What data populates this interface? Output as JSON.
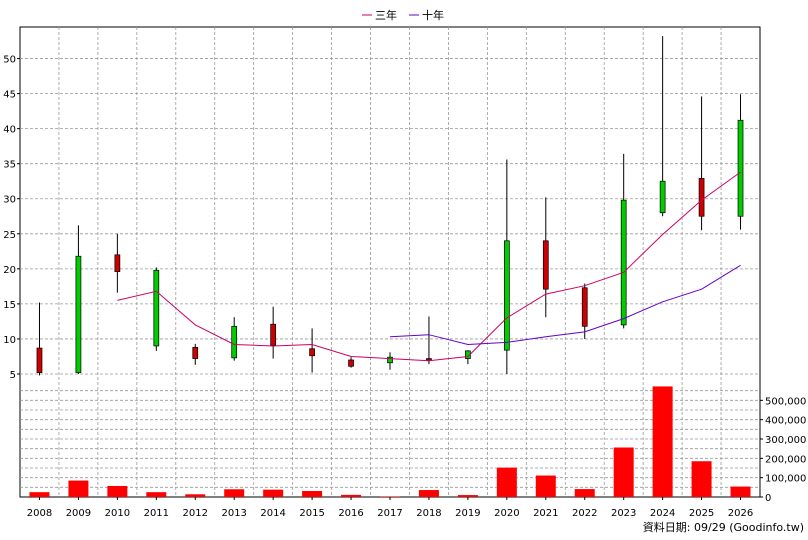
{
  "chart_data": {
    "type": "candlestick",
    "legend": [
      {
        "name": "三年",
        "color": "#cc0066"
      },
      {
        "name": "十年",
        "color": "#6600cc"
      }
    ],
    "legend_position": "top-center",
    "grid": true,
    "price_axis": {
      "position": "left",
      "ylim": [
        4,
        54.5
      ],
      "ticks": [
        5,
        10,
        15,
        20,
        25,
        30,
        35,
        40,
        45,
        50
      ]
    },
    "volume_axis": {
      "position": "right",
      "ylim": [
        0,
        600000
      ],
      "ticks": [
        0,
        100000,
        200000,
        300000,
        400000,
        500000
      ],
      "tick_labels": [
        "0",
        "100,000",
        "200,000",
        "300,000",
        "400,000",
        "500,000"
      ]
    },
    "categories": [
      "2008",
      "2009",
      "2010",
      "2011",
      "2012",
      "2013",
      "2014",
      "2015",
      "2016",
      "2017",
      "2018",
      "2019",
      "2020",
      "2021",
      "2022",
      "2023",
      "2024",
      "2025",
      "2026"
    ],
    "candles": [
      {
        "open": 5.2,
        "high": 15.2,
        "low": 4.8,
        "close": 8.7
      },
      {
        "open": 21.8,
        "high": 26.2,
        "low": 5.0,
        "close": 5.2
      },
      {
        "open": 19.6,
        "high": 25.0,
        "low": 16.6,
        "close": 22.0
      },
      {
        "open": 19.8,
        "high": 20.2,
        "low": 8.3,
        "close": 9.0
      },
      {
        "open": 7.2,
        "high": 9.3,
        "low": 6.3,
        "close": 8.8
      },
      {
        "open": 11.8,
        "high": 13.1,
        "low": 6.9,
        "close": 7.3
      },
      {
        "open": 9.1,
        "high": 14.6,
        "low": 7.2,
        "close": 12.1
      },
      {
        "open": 7.6,
        "high": 11.5,
        "low": 5.2,
        "close": 8.6
      },
      {
        "open": 6.1,
        "high": 7.4,
        "low": 5.9,
        "close": 7.0
      },
      {
        "open": 7.4,
        "high": 8.1,
        "low": 5.6,
        "close": 6.6
      },
      {
        "open": 7.0,
        "high": 13.2,
        "low": 6.4,
        "close": 7.2
      },
      {
        "open": 8.3,
        "high": 8.4,
        "low": 6.4,
        "close": 7.2
      },
      {
        "open": 24.0,
        "high": 35.6,
        "low": 5.0,
        "close": 8.4
      },
      {
        "open": 17.1,
        "high": 30.2,
        "low": 13.1,
        "close": 24.0
      },
      {
        "open": 11.8,
        "high": 17.9,
        "low": 10.0,
        "close": 17.3
      },
      {
        "open": 29.8,
        "high": 36.4,
        "low": 11.5,
        "close": 12.0
      },
      {
        "open": 32.5,
        "high": 53.2,
        "low": 27.5,
        "close": 28.0
      },
      {
        "open": 27.5,
        "high": 44.6,
        "low": 25.5,
        "close": 32.9
      },
      {
        "open": 41.2,
        "high": 44.9,
        "low": 25.6,
        "close": 27.5
      }
    ],
    "series": [
      {
        "name": "三年",
        "values": [
          null,
          null,
          15.5,
          16.8,
          12.0,
          9.2,
          9.0,
          9.2,
          7.5,
          7.2,
          6.9,
          7.5,
          13.0,
          16.4,
          17.6,
          19.5,
          24.9,
          29.8,
          33.8
        ]
      },
      {
        "name": "十年",
        "values": [
          null,
          null,
          null,
          null,
          null,
          null,
          null,
          null,
          null,
          10.3,
          10.6,
          9.2,
          9.5,
          10.3,
          11.0,
          12.9,
          15.3,
          17.1,
          20.5
        ]
      }
    ],
    "volume": [
      25000,
      85000,
      57000,
      25000,
      14000,
      40000,
      38000,
      31000,
      11000,
      3000,
      36000,
      10000,
      152000,
      111000,
      41000,
      256000,
      572000,
      185000,
      54000
    ],
    "colors": {
      "up": "#cc0000",
      "down": "#00cc00",
      "volume": "#ff0000"
    }
  },
  "footer_text": "資料日期: 09/29 (Goodinfo.tw)"
}
